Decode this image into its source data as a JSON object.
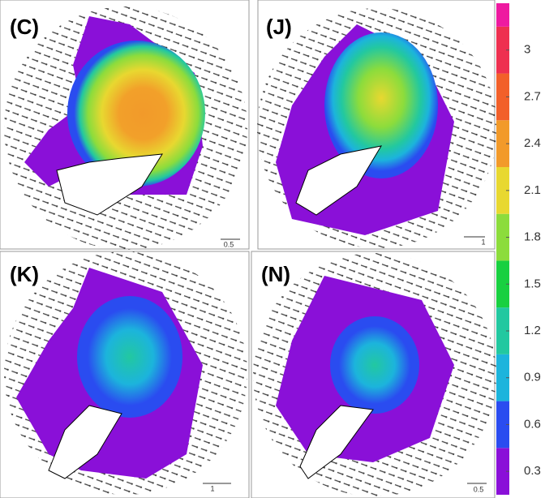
{
  "panels": [
    {
      "label": "(C)",
      "scale_label": "0.5"
    },
    {
      "label": "(J)",
      "scale_label": "1"
    },
    {
      "label": "(K)",
      "scale_label": "1"
    },
    {
      "label": "(N)",
      "scale_label": "0.5"
    }
  ],
  "colorbar": {
    "range": [
      0.15,
      3.3
    ],
    "ticks": [
      0.3,
      0.6,
      0.9,
      1.2,
      1.5,
      1.8,
      2.1,
      2.4,
      2.7,
      3
    ],
    "colors": [
      "#8a10d8",
      "#2a4cf0",
      "#1cb4dc",
      "#22c8a0",
      "#18d040",
      "#8cdc3c",
      "#e8d830",
      "#f29a2a",
      "#f2602a",
      "#ee3050",
      "#ee1aa0"
    ]
  }
}
